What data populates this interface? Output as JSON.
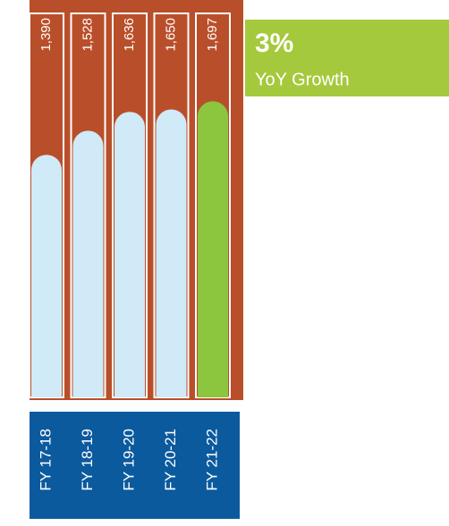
{
  "chart_data": {
    "type": "bar",
    "categories": [
      "FY 17-18",
      "FY 18-19",
      "FY 19-20",
      "FY 20-21",
      "FY 21-22"
    ],
    "values": [
      1390,
      1528,
      1636,
      1650,
      1697
    ],
    "value_labels": [
      "1,390",
      "1,528",
      "1,636",
      "1,650",
      "1,697"
    ],
    "colors": [
      "#d0eaf8",
      "#d0eaf8",
      "#d0eaf8",
      "#d0eaf8",
      "#8cc63f"
    ],
    "ylim": [
      0,
      2200
    ],
    "annotation": {
      "title": "3%",
      "text": "YoY Growth"
    }
  }
}
